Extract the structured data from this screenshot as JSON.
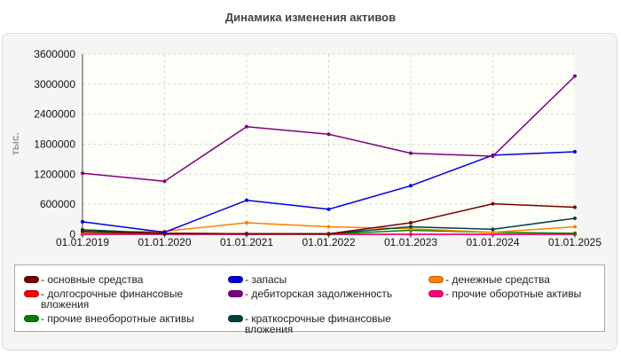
{
  "chart_data": {
    "type": "line",
    "title": "Динамика изменения активов",
    "ylabel": "тыс.",
    "xlabel": "",
    "categories": [
      "01.01.2019",
      "01.01.2020",
      "01.01.2021",
      "01.01.2022",
      "01.01.2023",
      "01.01.2024",
      "01.01.2025"
    ],
    "ylim": [
      0,
      3600000
    ],
    "yticks": [
      "0",
      "600000",
      "1200000",
      "1800000",
      "2400000",
      "3000000",
      "3600000"
    ],
    "grid": true,
    "legend_position": "bottom",
    "series": [
      {
        "name": "основные средства",
        "color": "#7a0000",
        "values": [
          60000,
          20000,
          10000,
          10000,
          230000,
          610000,
          540000
        ]
      },
      {
        "name": "долгосрочные финансовые вложения",
        "color": "#ff0000",
        "values": [
          0,
          0,
          0,
          0,
          0,
          0,
          0
        ]
      },
      {
        "name": "прочие внеоборотные активы",
        "color": "#008000",
        "values": [
          30000,
          10000,
          10000,
          5000,
          80000,
          40000,
          20000
        ]
      },
      {
        "name": "запасы",
        "color": "#0000dd",
        "values": [
          250000,
          40000,
          680000,
          500000,
          970000,
          1580000,
          1650000
        ]
      },
      {
        "name": "дебиторская задолженность",
        "color": "#800080",
        "values": [
          1220000,
          1060000,
          2150000,
          2000000,
          1620000,
          1560000,
          3160000
        ]
      },
      {
        "name": "краткосрочные финансовые вложения",
        "color": "#004040",
        "values": [
          90000,
          20000,
          10000,
          10000,
          150000,
          100000,
          320000
        ]
      },
      {
        "name": "денежные средства",
        "color": "#ff8000",
        "values": [
          40000,
          60000,
          230000,
          150000,
          110000,
          40000,
          150000
        ]
      },
      {
        "name": "прочие оборотные активы",
        "color": "#ff0080",
        "values": [
          0,
          0,
          0,
          0,
          0,
          0,
          0
        ]
      }
    ]
  }
}
